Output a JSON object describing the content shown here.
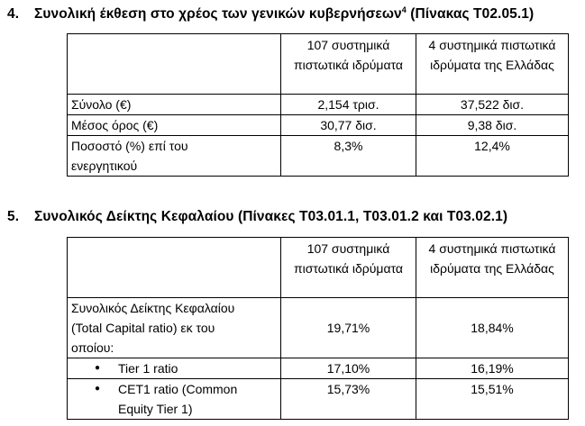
{
  "section4": {
    "number": "4.",
    "title": "Συνολική έκθεση στο χρέος των γενικών κυβερνήσεων",
    "footnote": "4",
    "ref": " (Πίνακας Τ02.05.1)",
    "table": {
      "col1_header": "107 συστημικά πιστωτικά ιδρύματα",
      "col2_header": "4 συστημικά πιστωτικά ιδρύματα της Ελλάδας",
      "rows": [
        {
          "label": "Σύνολο (€)",
          "v1": "2,154 τρισ.",
          "v2": "37,522 δισ."
        },
        {
          "label": "Μέσος όρος (€)",
          "v1": "30,77 δισ.",
          "v2": "9,38 δισ."
        },
        {
          "label": "Ποσοστό (%) επί του ενεργητικού",
          "v1": "8,3%",
          "v2": "12,4%"
        }
      ]
    }
  },
  "section5": {
    "number": "5.",
    "title": "Συνολικός Δείκτης Κεφαλαίου (Πίνακες Τ03.01.1, Τ03.01.2 και Τ03.02.1)",
    "table": {
      "col1_header": "107 συστημικά πιστωτικά ιδρύματα",
      "col2_header": "4 συστημικά πιστωτικά ιδρύματα της Ελλάδας",
      "row_total": {
        "label": "Συνολικός Δείκτης Κεφαλαίου (Total Capital ratio) εκ του οποίου:",
        "v1": "19,71%",
        "v2": "18,84%"
      },
      "bullet_rows": [
        {
          "label": "Tier 1 ratio",
          "v1": "17,10%",
          "v2": "16,19%"
        },
        {
          "label": "CET1 ratio (Common Equity Tier 1)",
          "v1": "15,73%",
          "v2": "15,51%"
        }
      ]
    }
  }
}
